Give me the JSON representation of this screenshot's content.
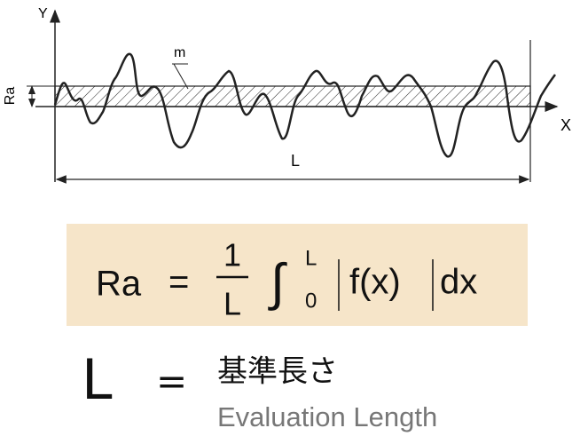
{
  "diagram": {
    "axis_y": "Y",
    "axis_x": "X",
    "ra_label": "Ra",
    "mean_line_label": "m",
    "length_label": "L"
  },
  "formula": {
    "lhs": "Ra",
    "equals": "=",
    "numerator": "1",
    "denominator": "L",
    "integral": "∫",
    "upper_limit": "L",
    "lower_limit": "0",
    "integrand": "f(x)",
    "differential": "dx"
  },
  "definition": {
    "symbol": "L",
    "equals": "=",
    "japanese": "基準長さ",
    "english": "Evaluation Length"
  }
}
